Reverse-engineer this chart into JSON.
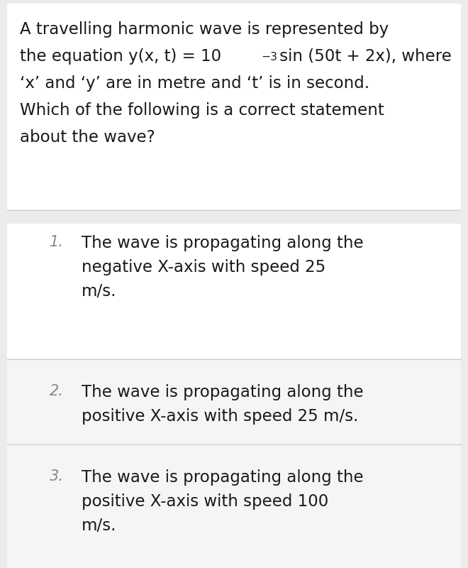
{
  "bg_color": "#ebebeb",
  "question_bg": "#ffffff",
  "option1_bg": "#ffffff",
  "option2_bg": "#f5f5f5",
  "option3_bg": "#f5f5f5",
  "divider_color": "#d0d0d0",
  "text_color": "#1a1a1a",
  "number_color": "#888888",
  "question_lines": [
    "A travelling harmonic wave is represented by",
    "the equation y(x, t) = 10",
    "−3",
    " sin (50t + 2x), where",
    "‘x’ and ‘y’ are in metre and ‘t’ is in second.",
    "Which of the following is a correct statement",
    "about the wave?"
  ],
  "options": [
    {
      "number": "1.",
      "text_lines": [
        "The wave is propagating along the",
        "negative X-axis with speed 25",
        "m/s."
      ],
      "bg": "#ffffff"
    },
    {
      "number": "2.",
      "text_lines": [
        "The wave is propagating along the",
        "positive X-axis with speed 25 m/s."
      ],
      "bg": "#f5f5f5"
    },
    {
      "number": "3.",
      "text_lines": [
        "The wave is propagating along the",
        "positive X-axis with speed 100",
        "m/s."
      ],
      "bg": "#f5f5f5"
    }
  ],
  "font_size_question": 16.5,
  "font_size_option": 16.5,
  "font_size_number": 15,
  "fig_width": 6.6,
  "fig_height": 8.0,
  "dpi": 100
}
